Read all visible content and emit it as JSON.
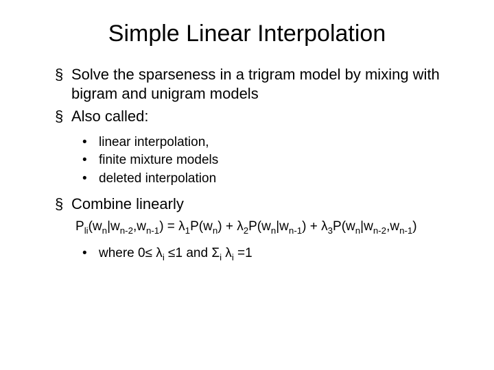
{
  "colors": {
    "background": "#ffffff",
    "text": "#000000"
  },
  "fonts": {
    "title_size_pt": 34,
    "body_size_pt": 22,
    "sub_size_pt": 19,
    "family": "Arial"
  },
  "bullets": {
    "level1_glyph": "§",
    "level2_glyph": "•"
  },
  "title": "Simple Linear Interpolation",
  "items": [
    {
      "level": 1,
      "text": "Solve the sparseness in a trigram model by mixing with bigram and unigram models"
    },
    {
      "level": 1,
      "text": "Also called:"
    },
    {
      "level": 2,
      "text": "linear interpolation,"
    },
    {
      "level": 2,
      "text": "finite mixture models"
    },
    {
      "level": 2,
      "text": "deleted interpolation"
    },
    {
      "level": 1,
      "text": "Combine linearly"
    }
  ],
  "formula": {
    "lhs": "P_li(w_n|w_{n-2},w_{n-1})",
    "rhs_terms": [
      {
        "lambda": "λ_1",
        "term": "P(w_n)"
      },
      {
        "lambda": "λ_2",
        "term": "P(w_n|w_{n-1})"
      },
      {
        "lambda": "λ_3",
        "term": "P(w_n|w_{n-2},w_{n-1})"
      }
    ],
    "display": "Pli(wn|wn-2,wn-1) = λ1P(wn) + λ2P(wn|wn-1) + λ3P(wn|wn-2,wn-1)"
  },
  "constraint": {
    "text": "where 0≤ λi ≤1 and Σi λi =1"
  }
}
